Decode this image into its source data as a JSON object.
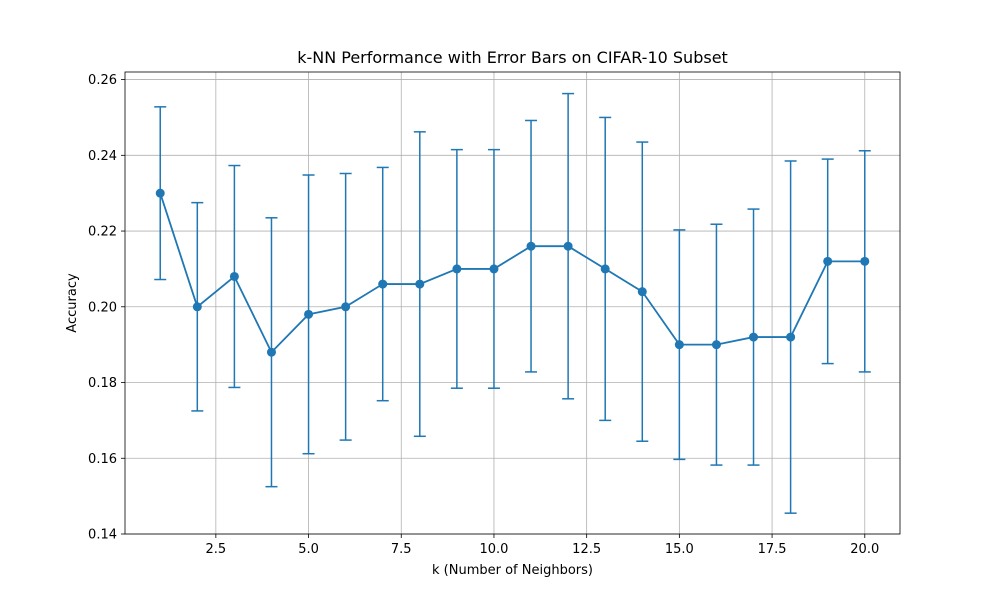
{
  "chart_data": {
    "type": "line",
    "title": "k-NN Performance with Error Bars on CIFAR-10 Subset",
    "xlabel": "k (Number of Neighbors)",
    "ylabel": "Accuracy",
    "xlim": [
      0.05,
      20.95
    ],
    "ylim": [
      0.14,
      0.262
    ],
    "xticks": [
      2.5,
      5.0,
      7.5,
      10.0,
      12.5,
      15.0,
      17.5,
      20.0
    ],
    "xtick_labels": [
      "2.5",
      "5.0",
      "7.5",
      "10.0",
      "12.5",
      "15.0",
      "17.5",
      "20.0"
    ],
    "yticks": [
      0.14,
      0.16,
      0.18,
      0.2,
      0.22,
      0.24,
      0.26
    ],
    "ytick_labels": [
      "0.14",
      "0.16",
      "0.18",
      "0.20",
      "0.22",
      "0.24",
      "0.26"
    ],
    "grid": true,
    "series": [
      {
        "color": "#1f77b4",
        "x": [
          1,
          2,
          3,
          4,
          5,
          6,
          7,
          8,
          9,
          10,
          11,
          12,
          13,
          14,
          15,
          16,
          17,
          18,
          19,
          20
        ],
        "y": [
          0.23,
          0.2,
          0.208,
          0.188,
          0.198,
          0.2,
          0.206,
          0.206,
          0.21,
          0.21,
          0.216,
          0.216,
          0.21,
          0.204,
          0.19,
          0.19,
          0.192,
          0.192,
          0.212,
          0.212
        ],
        "error": [
          0.0228,
          0.0275,
          0.0293,
          0.0355,
          0.0368,
          0.0352,
          0.0308,
          0.0402,
          0.0315,
          0.0315,
          0.0332,
          0.0403,
          0.04,
          0.0395,
          0.0303,
          0.0318,
          0.0338,
          0.0465,
          0.027,
          0.0292
        ]
      }
    ]
  }
}
